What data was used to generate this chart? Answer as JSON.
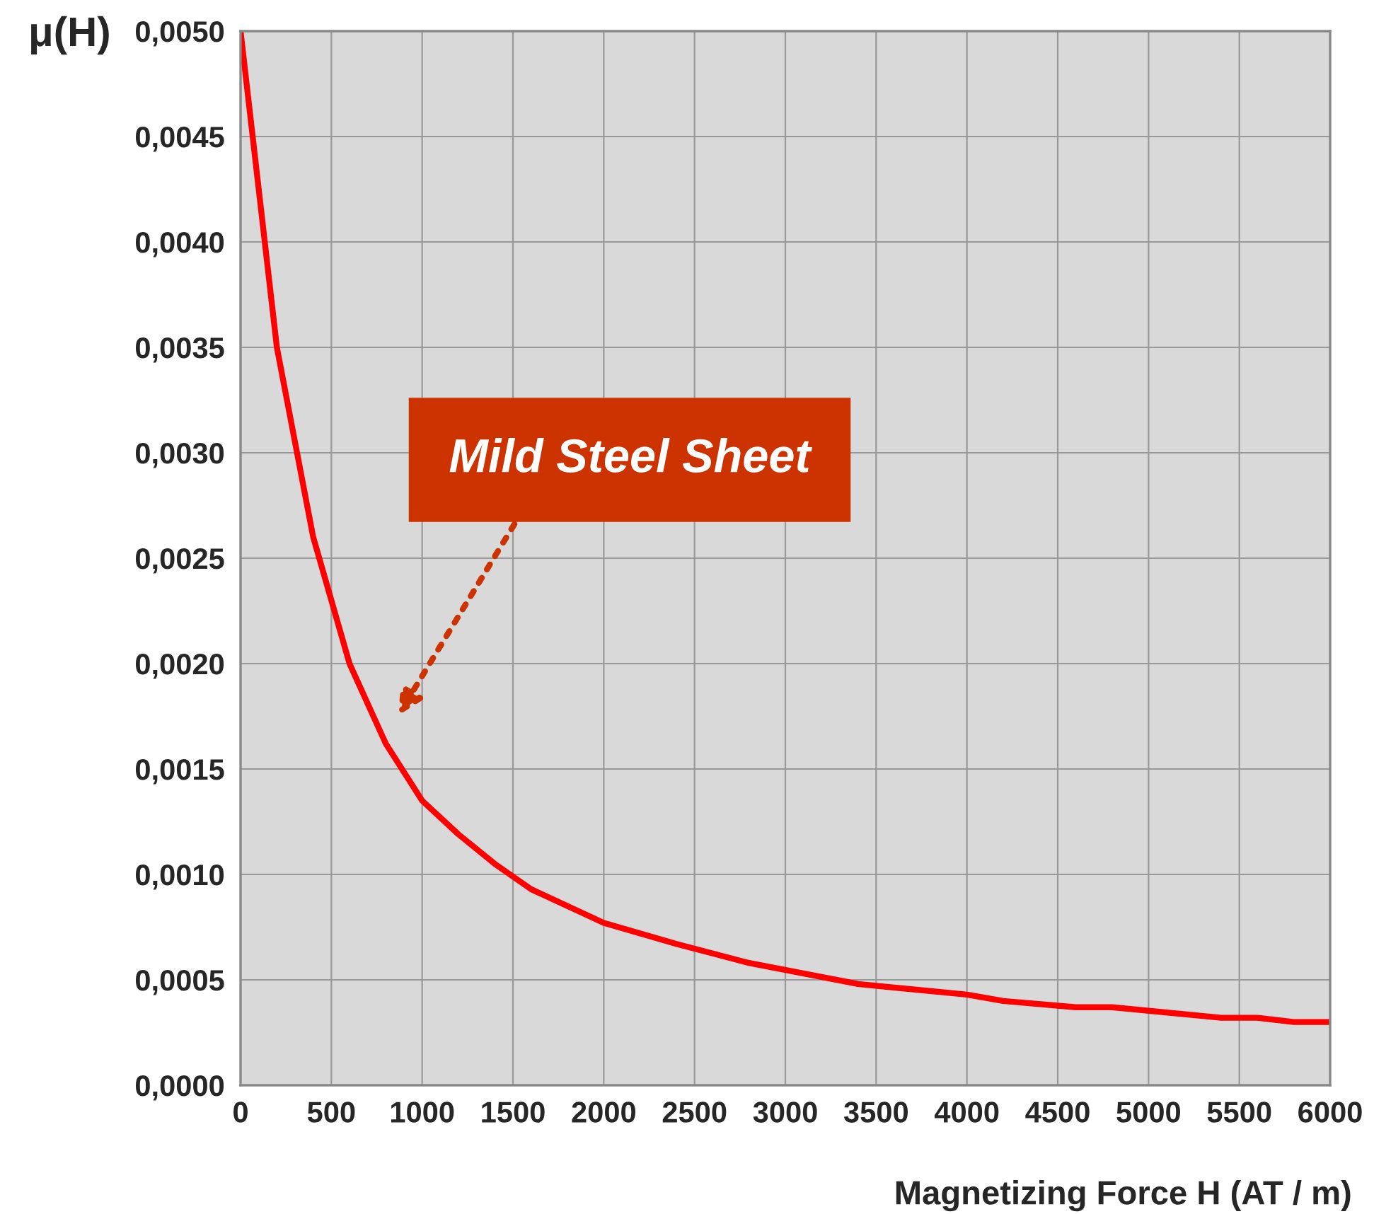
{
  "chart_data": {
    "type": "line",
    "xlabel": "Magnetizing Force H (AT / m)",
    "ylabel": "μ(H)",
    "x": [
      0,
      200,
      400,
      600,
      800,
      1000,
      1200,
      1400,
      1600,
      2000,
      2400,
      2800,
      3400,
      4000,
      4200,
      4600,
      4800,
      5400,
      5600,
      5800,
      6000
    ],
    "series": [
      {
        "color": "#ff0000",
        "values": [
          0.005,
          0.0035,
          0.0026,
          0.002,
          0.00162,
          0.00135,
          0.00119,
          0.00105,
          0.00093,
          0.00077,
          0.00067,
          0.00058,
          0.00048,
          0.00043,
          0.0004,
          0.00037,
          0.00037,
          0.00032,
          0.00032,
          0.0003,
          0.0003
        ]
      }
    ],
    "xlim": [
      0,
      6000
    ],
    "xticks": [
      0,
      500,
      1000,
      1500,
      2000,
      2500,
      3000,
      3500,
      4000,
      4500,
      5000,
      5500,
      6000
    ],
    "ylim": [
      0,
      0.005
    ],
    "yticks": [
      {
        "value": 0,
        "label": "0,0000"
      },
      {
        "value": 0.0005,
        "label": "0,0005"
      },
      {
        "value": 0.001,
        "label": "0,0010"
      },
      {
        "value": 0.0015,
        "label": "0,0015"
      },
      {
        "value": 0.002,
        "label": "0,0020"
      },
      {
        "value": 0.0025,
        "label": "0,0025"
      },
      {
        "value": 0.003,
        "label": "0,0030"
      },
      {
        "value": 0.0035,
        "label": "0,0035"
      },
      {
        "value": 0.004,
        "label": "0,0040"
      },
      {
        "value": 0.0045,
        "label": "0,0045"
      },
      {
        "value": 0.005,
        "label": "0,0050"
      }
    ],
    "annotations": [
      "Mild Steel Sheet"
    ],
    "grid": true,
    "marker": "none",
    "line_style": "solid",
    "legend": false
  }
}
